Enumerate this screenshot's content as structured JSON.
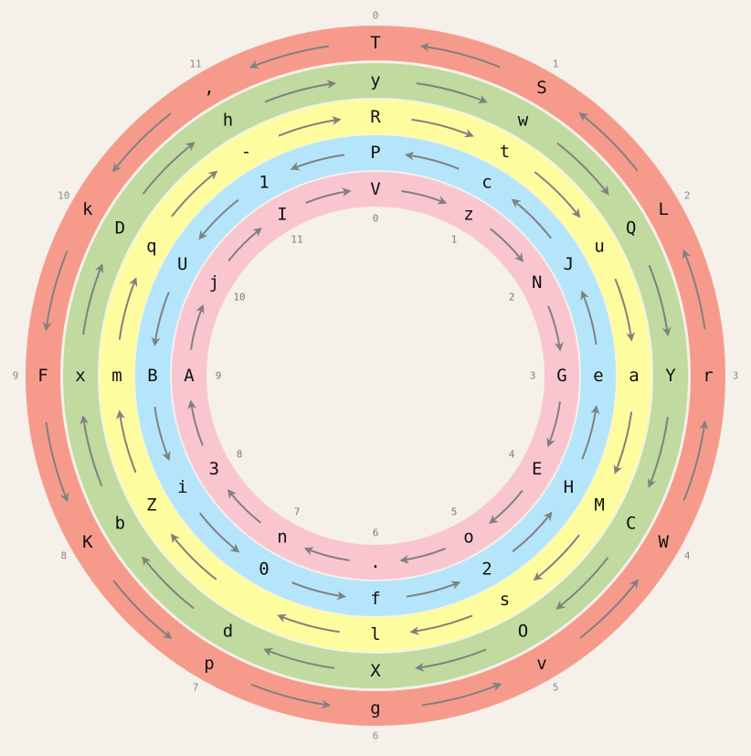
{
  "outer_indices": [
    "0",
    "1",
    "2",
    "3",
    "4",
    "5",
    "6",
    "7",
    "8",
    "9",
    "10",
    "11"
  ],
  "inner_indices": [
    "0",
    "1",
    "2",
    "3",
    "4",
    "5",
    "6",
    "7",
    "8",
    "9",
    "10",
    "11"
  ],
  "index_colors": {
    "outer": "#8a8a8a",
    "inner": "#8a7a60"
  },
  "arrow_color": "#808080",
  "rings": [
    {
      "name": "red",
      "color": "#f69b8c",
      "direction": "counterclockwise",
      "letters": [
        "T",
        "S",
        "L",
        "r",
        "W",
        "v",
        "g",
        "p",
        "K",
        "F",
        "k",
        ","
      ]
    },
    {
      "name": "green",
      "color": "#c0da9f",
      "direction": "clockwise",
      "letters": [
        "y",
        "w",
        "Q",
        "Y",
        "C",
        "O",
        "X",
        "d",
        "b",
        "x",
        "D",
        "h"
      ]
    },
    {
      "name": "yellow",
      "color": "#fdfd9f",
      "direction": "clockwise",
      "letters": [
        "R",
        "t",
        "u",
        "a",
        "M",
        "s",
        "l",
        " ",
        "Z",
        "m",
        "q",
        "-"
      ]
    },
    {
      "name": "blue",
      "color": "#b4e5fb",
      "direction": "counterclockwise",
      "letters": [
        "P",
        "c",
        "J",
        "e",
        "H",
        "2",
        "f",
        "0",
        "i",
        "B",
        "U",
        "1"
      ]
    },
    {
      "name": "pink",
      "color": "#f9c6cf",
      "direction": "clockwise",
      "letters": [
        "V",
        "z",
        "N",
        "G",
        "E",
        "o",
        ".",
        "n",
        "3",
        "A",
        "j",
        "I"
      ]
    }
  ]
}
